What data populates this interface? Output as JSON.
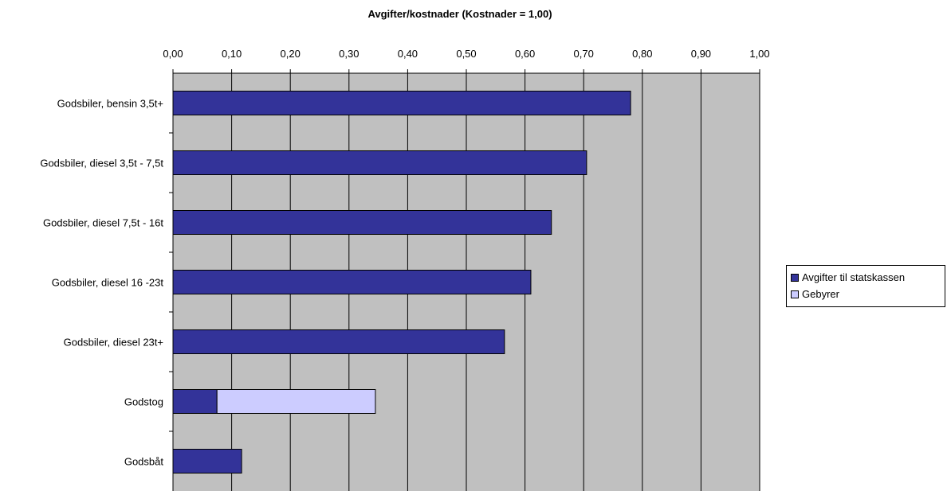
{
  "chart_data": {
    "type": "bar",
    "orientation": "horizontal",
    "stacked": true,
    "title": "Avgifter/kostnader (Kostnader = 1,00)",
    "categories": [
      "Godsbiler, bensin  3,5t+",
      "Godsbiler, diesel 3,5t - 7,5t",
      "Godsbiler, diesel 7,5t - 16t",
      "Godsbiler, diesel 16 -23t",
      "Godsbiler, diesel 23t+",
      "Godstog",
      "Godsbåt"
    ],
    "series": [
      {
        "name": "Avgifter til  statskassen",
        "color": "#333399",
        "values": [
          0.78,
          0.705,
          0.645,
          0.61,
          0.565,
          0.075,
          0.117
        ]
      },
      {
        "name": "Gebyrer",
        "color": "#ccccff",
        "values": [
          0,
          0,
          0,
          0,
          0,
          0.27,
          0
        ]
      }
    ],
    "xlim": [
      0,
      1.0
    ],
    "xticks": [
      "0,00",
      "0,10",
      "0,20",
      "0,30",
      "0,40",
      "0,50",
      "0,60",
      "0,70",
      "0,80",
      "0,90",
      "1,00"
    ],
    "x_axis_position": "top",
    "grid": true,
    "plot_background": "#c0c0c0",
    "legend_position": "right"
  }
}
